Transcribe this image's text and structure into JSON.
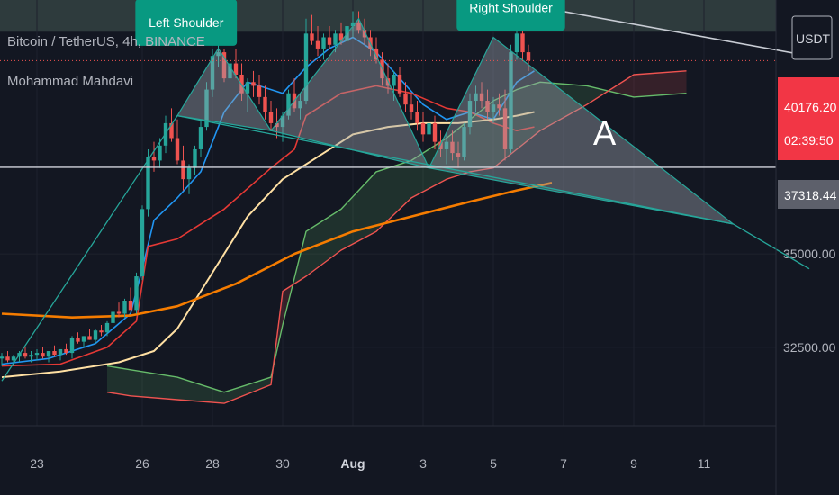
{
  "header": {
    "symbol_title": "Bitcoin / TetherUS, 4h, BINANCE",
    "author": "Mohammad Mahdavi",
    "currency_button": "USDT"
  },
  "price_tags": {
    "last_price": "40176.20",
    "countdown": "02:39:50",
    "marked_level": "37318.44"
  },
  "colors": {
    "background": "#131722",
    "up": "#26a69a",
    "down": "#ef5350",
    "tenkan": "#2196f3",
    "kijun": "#e53935",
    "span_a": "#66bb6a",
    "span_b": "#ef5350",
    "ma_short": "#ffe0a3",
    "ma_long": "#f57c00",
    "pattern": "#9aa3ad",
    "neckline": "#26a69a"
  },
  "chart_data": {
    "type": "candlestick",
    "title": "Bitcoin / TetherUS, 4h, BINANCE",
    "x_ticks": [
      {
        "label": "23",
        "i": 6
      },
      {
        "label": "26",
        "i": 24
      },
      {
        "label": "28",
        "i": 36
      },
      {
        "label": "30",
        "i": 48
      },
      {
        "label": "Aug",
        "i": 60,
        "bold": true
      },
      {
        "label": "3",
        "i": 72
      },
      {
        "label": "5",
        "i": 84
      },
      {
        "label": "7",
        "i": 96
      },
      {
        "label": "9",
        "i": 108
      },
      {
        "label": "11",
        "i": 120
      }
    ],
    "y_ticks": [
      32500,
      35000
    ],
    "ylim": [
      30400,
      41800
    ],
    "horizontal_lines": [
      {
        "price": 37318.44,
        "style": "solid",
        "label": "37318.44"
      },
      {
        "price": 40176.2,
        "style": "dotted",
        "label": "40176.20"
      }
    ],
    "candles": [
      [
        32200,
        32350,
        32000,
        32250
      ],
      [
        32250,
        32400,
        32100,
        32150
      ],
      [
        32150,
        32300,
        32000,
        32250
      ],
      [
        32250,
        32400,
        32100,
        32350
      ],
      [
        32350,
        32500,
        32200,
        32250
      ],
      [
        32250,
        32400,
        32100,
        32300
      ],
      [
        32300,
        32450,
        32150,
        32350
      ],
      [
        32350,
        32500,
        32200,
        32250
      ],
      [
        32250,
        32400,
        32100,
        32400
      ],
      [
        32400,
        32550,
        32250,
        32300
      ],
      [
        32300,
        32450,
        32150,
        32450
      ],
      [
        32450,
        32600,
        32300,
        32350
      ],
      [
        32350,
        32800,
        32200,
        32750
      ],
      [
        32750,
        32900,
        32600,
        32650
      ],
      [
        32650,
        32800,
        32500,
        32800
      ],
      [
        32800,
        33000,
        32700,
        32700
      ],
      [
        32700,
        33000,
        32600,
        32950
      ],
      [
        32950,
        33100,
        32800,
        32900
      ],
      [
        32900,
        33200,
        32800,
        33150
      ],
      [
        33150,
        33500,
        33000,
        33450
      ],
      [
        33450,
        33700,
        33300,
        33400
      ],
      [
        33400,
        33800,
        33300,
        33750
      ],
      [
        33750,
        34100,
        33600,
        33500
      ],
      [
        33500,
        34500,
        33400,
        34400
      ],
      [
        34400,
        36300,
        34300,
        36200
      ],
      [
        36200,
        37800,
        36000,
        37600
      ],
      [
        37600,
        38000,
        37200,
        37500
      ],
      [
        37500,
        38100,
        37300,
        37900
      ],
      [
        37900,
        38700,
        37700,
        38500
      ],
      [
        38500,
        38900,
        38000,
        38100
      ],
      [
        38100,
        38600,
        37400,
        37500
      ],
      [
        37500,
        37900,
        36700,
        37000
      ],
      [
        37000,
        37400,
        36600,
        37300
      ],
      [
        37300,
        37900,
        37100,
        37800
      ],
      [
        37800,
        38600,
        37600,
        38400
      ],
      [
        38400,
        39600,
        38300,
        39400
      ],
      [
        39400,
        40500,
        39200,
        40300
      ],
      [
        40300,
        40600,
        40000,
        40400
      ],
      [
        40400,
        40500,
        39600,
        39700
      ],
      [
        39700,
        40200,
        39400,
        40100
      ],
      [
        40100,
        40500,
        39700,
        39800
      ],
      [
        39800,
        40100,
        39100,
        39300
      ],
      [
        39300,
        39700,
        38800,
        39600
      ],
      [
        39600,
        39900,
        39200,
        39500
      ],
      [
        39500,
        39800,
        39000,
        39200
      ],
      [
        39200,
        39500,
        38600,
        38800
      ],
      [
        38800,
        39100,
        38300,
        38500
      ],
      [
        38500,
        38900,
        38100,
        38400
      ],
      [
        38400,
        38800,
        38000,
        38700
      ],
      [
        38700,
        39400,
        38600,
        39300
      ],
      [
        39300,
        39700,
        38800,
        38900
      ],
      [
        38900,
        39300,
        38600,
        39100
      ],
      [
        39100,
        41300,
        39000,
        40900
      ],
      [
        40900,
        41400,
        40600,
        40700
      ],
      [
        40700,
        41100,
        40300,
        40500
      ],
      [
        40500,
        40900,
        40200,
        40800
      ],
      [
        40800,
        41100,
        40500,
        40600
      ],
      [
        40600,
        41000,
        40400,
        40900
      ],
      [
        40900,
        41200,
        40600,
        40700
      ],
      [
        40700,
        41300,
        40500,
        41100
      ],
      [
        41100,
        41500,
        40800,
        41200
      ],
      [
        41200,
        41500,
        40900,
        41000
      ],
      [
        41000,
        41300,
        40600,
        40800
      ],
      [
        40800,
        41000,
        40300,
        40500
      ],
      [
        40500,
        40800,
        40100,
        40200
      ],
      [
        40200,
        40400,
        39500,
        39700
      ],
      [
        39700,
        40100,
        39300,
        39500
      ],
      [
        39500,
        39900,
        39100,
        39800
      ],
      [
        39800,
        40000,
        39200,
        39300
      ],
      [
        39300,
        39600,
        38800,
        39000
      ],
      [
        39000,
        39300,
        38600,
        38800
      ],
      [
        38800,
        39100,
        38300,
        38500
      ],
      [
        38500,
        38800,
        38000,
        38200
      ],
      [
        38200,
        38600,
        37900,
        38500
      ],
      [
        38500,
        38700,
        37800,
        38000
      ],
      [
        38000,
        38300,
        37600,
        37800
      ],
      [
        37800,
        38200,
        37400,
        38000
      ],
      [
        38000,
        38300,
        37500,
        37700
      ],
      [
        37700,
        38000,
        37300,
        37600
      ],
      [
        37600,
        38500,
        37500,
        38400
      ],
      [
        38400,
        39300,
        38200,
        39100
      ],
      [
        39100,
        39500,
        38800,
        39300
      ],
      [
        39300,
        39600,
        38900,
        39100
      ],
      [
        39100,
        39400,
        38600,
        38800
      ],
      [
        38800,
        39200,
        38500,
        39000
      ],
      [
        39000,
        39300,
        38700,
        38900
      ],
      [
        38900,
        39400,
        37500,
        37800
      ],
      [
        37800,
        40600,
        37700,
        40400
      ],
      [
        40400,
        41200,
        40200,
        40900
      ],
      [
        40900,
        41000,
        40200,
        40400
      ],
      [
        40400,
        40600,
        39900,
        40176
      ]
    ],
    "series": [
      {
        "name": "tenkan",
        "values": [
          [
            0,
            32050
          ],
          [
            8,
            32200
          ],
          [
            16,
            32600
          ],
          [
            22,
            33400
          ],
          [
            24,
            34600
          ],
          [
            26,
            35900
          ],
          [
            30,
            36500
          ],
          [
            34,
            37200
          ],
          [
            38,
            38800
          ],
          [
            42,
            39600
          ],
          [
            48,
            39300
          ],
          [
            52,
            40000
          ],
          [
            56,
            40500
          ],
          [
            60,
            40800
          ],
          [
            64,
            40400
          ],
          [
            68,
            39700
          ],
          [
            72,
            39000
          ],
          [
            76,
            38600
          ],
          [
            80,
            38800
          ],
          [
            84,
            38600
          ],
          [
            88,
            39600
          ],
          [
            91,
            39900
          ]
        ]
      },
      {
        "name": "kijun",
        "values": [
          [
            0,
            32000
          ],
          [
            10,
            32050
          ],
          [
            18,
            32500
          ],
          [
            23,
            33200
          ],
          [
            25,
            35200
          ],
          [
            30,
            35400
          ],
          [
            38,
            36200
          ],
          [
            46,
            37300
          ],
          [
            50,
            37800
          ],
          [
            52,
            38700
          ],
          [
            58,
            39300
          ],
          [
            64,
            39500
          ],
          [
            70,
            39300
          ],
          [
            76,
            38900
          ],
          [
            80,
            38800
          ],
          [
            84,
            38500
          ],
          [
            88,
            38300
          ],
          [
            91,
            38400
          ]
        ]
      },
      {
        "name": "span_a",
        "values": [
          [
            18,
            32000
          ],
          [
            22,
            31900
          ],
          [
            30,
            31700
          ],
          [
            38,
            31300
          ],
          [
            46,
            31700
          ],
          [
            48,
            33100
          ],
          [
            52,
            35600
          ],
          [
            58,
            36200
          ],
          [
            64,
            37200
          ],
          [
            70,
            37500
          ],
          [
            76,
            38100
          ],
          [
            80,
            38600
          ],
          [
            84,
            39100
          ],
          [
            88,
            39400
          ],
          [
            92,
            39600
          ],
          [
            100,
            39500
          ],
          [
            108,
            39200
          ],
          [
            117,
            39300
          ]
        ]
      },
      {
        "name": "span_b",
        "values": [
          [
            18,
            31300
          ],
          [
            22,
            31200
          ],
          [
            30,
            31100
          ],
          [
            38,
            31000
          ],
          [
            46,
            31500
          ],
          [
            48,
            34000
          ],
          [
            52,
            34400
          ],
          [
            58,
            35100
          ],
          [
            64,
            35600
          ],
          [
            70,
            36500
          ],
          [
            76,
            37000
          ],
          [
            80,
            37200
          ],
          [
            84,
            37300
          ],
          [
            88,
            37800
          ],
          [
            92,
            38300
          ],
          [
            100,
            39000
          ],
          [
            108,
            39800
          ],
          [
            117,
            39900
          ]
        ]
      },
      {
        "name": "ma_short",
        "values": [
          [
            0,
            31700
          ],
          [
            10,
            31850
          ],
          [
            20,
            32100
          ],
          [
            26,
            32400
          ],
          [
            30,
            33000
          ],
          [
            36,
            34500
          ],
          [
            42,
            36000
          ],
          [
            48,
            37000
          ],
          [
            54,
            37600
          ],
          [
            60,
            38200
          ],
          [
            66,
            38400
          ],
          [
            72,
            38500
          ],
          [
            78,
            38500
          ],
          [
            84,
            38600
          ],
          [
            88,
            38700
          ],
          [
            91,
            38800
          ]
        ]
      },
      {
        "name": "ma_long",
        "values": [
          [
            0,
            33400
          ],
          [
            12,
            33300
          ],
          [
            22,
            33350
          ],
          [
            30,
            33600
          ],
          [
            40,
            34200
          ],
          [
            50,
            35000
          ],
          [
            60,
            35600
          ],
          [
            70,
            36000
          ],
          [
            80,
            36400
          ],
          [
            88,
            36700
          ],
          [
            94,
            36900
          ]
        ]
      }
    ],
    "annotations": [
      {
        "type": "label",
        "text": "Left Shoulder",
        "i": 31.5,
        "price": 41200
      },
      {
        "type": "label",
        "text": "Right Shoulder",
        "i": 87,
        "price": 41600
      },
      {
        "type": "label",
        "text": "",
        "i": 61,
        "price": 42200
      },
      {
        "type": "text",
        "text": "A",
        "i": 103,
        "price": 38300
      }
    ],
    "pattern": {
      "triangles": [
        [
          [
            30,
            38700
          ],
          [
            37,
            40500
          ],
          [
            46,
            38300
          ]
        ],
        [
          [
            46,
            38300
          ],
          [
            61,
            41300
          ],
          [
            73,
            37300
          ]
        ],
        [
          [
            73,
            37300
          ],
          [
            84,
            40800
          ],
          [
            125,
            35800
          ]
        ]
      ],
      "neckline": [
        [
          30,
          38700
        ],
        [
          125,
          35800
        ]
      ],
      "neckline_extension": [
        [
          125,
          35800
        ],
        [
          138,
          34600
        ]
      ],
      "left_trendline": [
        [
          0,
          31600
        ],
        [
          30,
          38700
        ]
      ],
      "channel_line": [
        [
          57,
          42600
        ],
        [
          138,
          40300
        ]
      ]
    }
  }
}
